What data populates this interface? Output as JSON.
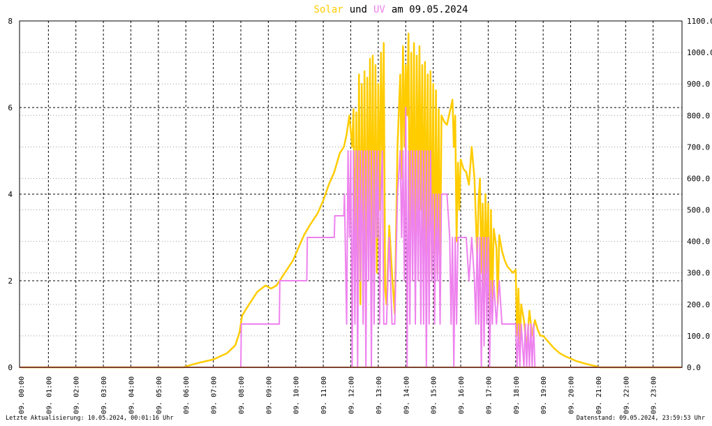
{
  "title": {
    "solar": "Solar",
    "und": "und",
    "uv": "UV",
    "rest": "am 09.05.2024"
  },
  "footer": {
    "left": "Letzte Aktualisierung: 10.05.2024, 00:01:16 Uhr",
    "right": "Datenstand: 09.05.2024, 23:59:53 Uhr"
  },
  "colors": {
    "solar": "#ffcc00",
    "uv": "#ee82ee",
    "baseline": "#ff8060",
    "grid": "#000000"
  },
  "chart_data": {
    "type": "line",
    "x_unit": "hour of day",
    "xlim": [
      -0.05,
      24.05
    ],
    "x_ticks": [
      0,
      1,
      2,
      3,
      4,
      5,
      6,
      7,
      8,
      9,
      10,
      11,
      12,
      13,
      14,
      15,
      16,
      17,
      18,
      19,
      20,
      21,
      22,
      23
    ],
    "x_tick_labels": [
      "09. 00:00",
      "09. 01:00",
      "09. 02:00",
      "09. 03:00",
      "09. 04:00",
      "09. 05:00",
      "09. 06:00",
      "09. 07:00",
      "09. 08:00",
      "09. 09:00",
      "09. 10:00",
      "09. 11:00",
      "09. 12:00",
      "09. 13:00",
      "09. 14:00",
      "09. 15:00",
      "09. 16:00",
      "09. 17:00",
      "09. 18:00",
      "09. 19:00",
      "09. 20:00",
      "09. 21:00",
      "09. 22:00",
      "09. 23:00"
    ],
    "y_left": {
      "range": [
        0,
        8
      ],
      "ticks": [
        0,
        2,
        4,
        6,
        8
      ],
      "tick_labels": [
        "0",
        "2",
        "4",
        "6",
        "8"
      ]
    },
    "y_right": {
      "range": [
        0,
        1100
      ],
      "ticks": [
        0,
        100,
        200,
        300,
        400,
        500,
        600,
        700,
        800,
        900,
        1000,
        1100
      ],
      "tick_labels": [
        "0.0",
        "100.0",
        "200.0",
        "300.0",
        "400.0",
        "500.0",
        "600.0",
        "700.0",
        "800.0",
        "900.0",
        "1000.0",
        "1100.0"
      ]
    },
    "grid": true,
    "series": [
      {
        "name": "Solar",
        "axis": "right",
        "points": [
          [
            0,
            0
          ],
          [
            5.9,
            0
          ],
          [
            6.0,
            3
          ],
          [
            6.2,
            8
          ],
          [
            6.5,
            15
          ],
          [
            7.0,
            25
          ],
          [
            7.5,
            45
          ],
          [
            7.8,
            70
          ],
          [
            7.95,
            110
          ],
          [
            8.05,
            165
          ],
          [
            8.3,
            200
          ],
          [
            8.6,
            240
          ],
          [
            8.9,
            260
          ],
          [
            9.1,
            250
          ],
          [
            9.3,
            260
          ],
          [
            9.6,
            300
          ],
          [
            9.9,
            340
          ],
          [
            10.1,
            380
          ],
          [
            10.3,
            420
          ],
          [
            10.5,
            450
          ],
          [
            10.8,
            490
          ],
          [
            11.0,
            530
          ],
          [
            11.2,
            580
          ],
          [
            11.4,
            620
          ],
          [
            11.5,
            650
          ],
          [
            11.6,
            680
          ],
          [
            11.75,
            700
          ],
          [
            11.85,
            740
          ],
          [
            11.95,
            800
          ],
          [
            12.05,
            700
          ],
          [
            12.1,
            820
          ],
          [
            12.15,
            280
          ],
          [
            12.2,
            810
          ],
          [
            12.25,
            300
          ],
          [
            12.3,
            930
          ],
          [
            12.35,
            200
          ],
          [
            12.4,
            900
          ],
          [
            12.45,
            300
          ],
          [
            12.5,
            940
          ],
          [
            12.55,
            200
          ],
          [
            12.6,
            920
          ],
          [
            12.65,
            350
          ],
          [
            12.7,
            980
          ],
          [
            12.75,
            300
          ],
          [
            12.8,
            990
          ],
          [
            12.85,
            250
          ],
          [
            12.9,
            960
          ],
          [
            12.95,
            300
          ],
          [
            13.0,
            900
          ],
          [
            13.05,
            500
          ],
          [
            13.1,
            1000
          ],
          [
            13.15,
            600
          ],
          [
            13.2,
            1030
          ],
          [
            13.25,
            250
          ],
          [
            13.3,
            200
          ],
          [
            13.4,
            450
          ],
          [
            13.5,
            300
          ],
          [
            13.6,
            170
          ],
          [
            13.7,
            700
          ],
          [
            13.8,
            930
          ],
          [
            13.85,
            600
          ],
          [
            13.9,
            1020
          ],
          [
            13.95,
            700
          ],
          [
            14.0,
            960
          ],
          [
            14.05,
            800
          ],
          [
            14.1,
            1060
          ],
          [
            14.15,
            250
          ],
          [
            14.2,
            1000
          ],
          [
            14.25,
            400
          ],
          [
            14.3,
            1030
          ],
          [
            14.35,
            300
          ],
          [
            14.4,
            990
          ],
          [
            14.45,
            500
          ],
          [
            14.5,
            1020
          ],
          [
            14.55,
            500
          ],
          [
            14.6,
            960
          ],
          [
            14.65,
            400
          ],
          [
            14.7,
            970
          ],
          [
            14.75,
            350
          ],
          [
            14.8,
            930
          ],
          [
            14.85,
            250
          ],
          [
            14.9,
            940
          ],
          [
            14.95,
            300
          ],
          [
            15.0,
            900
          ],
          [
            15.05,
            200
          ],
          [
            15.1,
            880
          ],
          [
            15.15,
            300
          ],
          [
            15.2,
            820
          ],
          [
            15.25,
            250
          ],
          [
            15.3,
            800
          ],
          [
            15.4,
            780
          ],
          [
            15.5,
            770
          ],
          [
            15.6,
            810
          ],
          [
            15.7,
            850
          ],
          [
            15.75,
            700
          ],
          [
            15.8,
            800
          ],
          [
            15.85,
            400
          ],
          [
            15.9,
            650
          ],
          [
            15.95,
            500
          ],
          [
            16.0,
            660
          ],
          [
            16.1,
            630
          ],
          [
            16.2,
            620
          ],
          [
            16.3,
            580
          ],
          [
            16.4,
            700
          ],
          [
            16.5,
            600
          ],
          [
            16.6,
            350
          ],
          [
            16.65,
            530
          ],
          [
            16.7,
            600
          ],
          [
            16.75,
            300
          ],
          [
            16.8,
            520
          ],
          [
            16.85,
            200
          ],
          [
            16.9,
            550
          ],
          [
            16.95,
            300
          ],
          [
            17.0,
            520
          ],
          [
            17.05,
            150
          ],
          [
            17.1,
            500
          ],
          [
            17.15,
            200
          ],
          [
            17.2,
            440
          ],
          [
            17.3,
            380
          ],
          [
            17.35,
            200
          ],
          [
            17.4,
            420
          ],
          [
            17.5,
            370
          ],
          [
            17.6,
            340
          ],
          [
            17.7,
            320
          ],
          [
            17.8,
            310
          ],
          [
            17.9,
            300
          ],
          [
            18.0,
            310
          ],
          [
            18.05,
            100
          ],
          [
            18.1,
            250
          ],
          [
            18.15,
            60
          ],
          [
            18.2,
            200
          ],
          [
            18.3,
            150
          ],
          [
            18.4,
            60
          ],
          [
            18.5,
            180
          ],
          [
            18.6,
            100
          ],
          [
            18.7,
            150
          ],
          [
            18.8,
            120
          ],
          [
            18.9,
            100
          ],
          [
            19.0,
            100
          ],
          [
            19.2,
            80
          ],
          [
            19.4,
            60
          ],
          [
            19.6,
            45
          ],
          [
            19.8,
            35
          ],
          [
            20.0,
            28
          ],
          [
            20.2,
            20
          ],
          [
            20.4,
            15
          ],
          [
            20.6,
            10
          ],
          [
            20.8,
            6
          ],
          [
            20.95,
            3
          ],
          [
            21.05,
            0
          ],
          [
            24.0,
            0
          ]
        ]
      },
      {
        "name": "UV",
        "axis": "left",
        "points": [
          [
            0,
            0
          ],
          [
            8.0,
            0
          ],
          [
            8.02,
            1
          ],
          [
            9.4,
            1
          ],
          [
            9.42,
            2
          ],
          [
            10.4,
            2
          ],
          [
            10.42,
            3
          ],
          [
            11.4,
            3
          ],
          [
            11.42,
            3.5
          ],
          [
            11.75,
            3.5
          ],
          [
            11.77,
            4
          ],
          [
            11.85,
            1
          ],
          [
            11.9,
            5
          ],
          [
            11.95,
            3
          ],
          [
            12.0,
            5
          ],
          [
            12.05,
            0
          ],
          [
            12.1,
            5
          ],
          [
            12.15,
            1
          ],
          [
            12.2,
            5
          ],
          [
            12.25,
            0
          ],
          [
            12.3,
            5
          ],
          [
            12.35,
            2
          ],
          [
            12.4,
            5
          ],
          [
            12.45,
            1
          ],
          [
            12.5,
            5
          ],
          [
            12.55,
            0
          ],
          [
            12.6,
            5
          ],
          [
            12.65,
            2
          ],
          [
            12.7,
            5
          ],
          [
            12.75,
            0
          ],
          [
            12.8,
            5
          ],
          [
            12.85,
            1
          ],
          [
            12.9,
            5
          ],
          [
            12.95,
            3
          ],
          [
            13.0,
            5
          ],
          [
            13.05,
            1
          ],
          [
            13.1,
            4
          ],
          [
            13.15,
            5
          ],
          [
            13.2,
            1
          ],
          [
            13.3,
            1
          ],
          [
            13.4,
            3
          ],
          [
            13.5,
            1
          ],
          [
            13.6,
            1
          ],
          [
            13.7,
            4
          ],
          [
            13.8,
            5
          ],
          [
            13.85,
            3
          ],
          [
            13.9,
            5
          ],
          [
            13.95,
            2
          ],
          [
            14.0,
            6
          ],
          [
            14.05,
            0
          ],
          [
            14.1,
            5
          ],
          [
            14.15,
            1
          ],
          [
            14.2,
            5
          ],
          [
            14.25,
            2
          ],
          [
            14.3,
            5
          ],
          [
            14.35,
            1
          ],
          [
            14.4,
            5
          ],
          [
            14.45,
            2
          ],
          [
            14.5,
            5
          ],
          [
            14.55,
            1
          ],
          [
            14.6,
            5
          ],
          [
            14.65,
            1
          ],
          [
            14.7,
            5
          ],
          [
            14.75,
            0
          ],
          [
            14.8,
            5
          ],
          [
            14.85,
            1
          ],
          [
            14.9,
            5
          ],
          [
            14.95,
            2
          ],
          [
            15.0,
            4
          ],
          [
            15.05,
            1
          ],
          [
            15.1,
            4
          ],
          [
            15.15,
            2
          ],
          [
            15.2,
            4
          ],
          [
            15.25,
            1
          ],
          [
            15.3,
            4
          ],
          [
            15.5,
            4
          ],
          [
            15.6,
            3
          ],
          [
            15.65,
            1
          ],
          [
            15.7,
            3
          ],
          [
            15.75,
            0
          ],
          [
            15.8,
            3
          ],
          [
            15.85,
            1
          ],
          [
            15.9,
            3
          ],
          [
            16.0,
            3
          ],
          [
            16.2,
            3
          ],
          [
            16.3,
            2
          ],
          [
            16.4,
            3
          ],
          [
            16.5,
            2
          ],
          [
            16.55,
            1
          ],
          [
            16.6,
            3
          ],
          [
            16.65,
            1
          ],
          [
            16.7,
            3
          ],
          [
            16.75,
            0
          ],
          [
            16.8,
            3
          ],
          [
            16.85,
            0.5
          ],
          [
            16.9,
            3
          ],
          [
            16.95,
            1
          ],
          [
            17.0,
            3
          ],
          [
            17.05,
            0
          ],
          [
            17.1,
            2
          ],
          [
            17.15,
            1
          ],
          [
            17.2,
            2
          ],
          [
            17.3,
            1
          ],
          [
            17.4,
            2
          ],
          [
            17.5,
            1
          ],
          [
            18.0,
            1
          ],
          [
            18.05,
            0
          ],
          [
            18.1,
            1
          ],
          [
            18.15,
            0
          ],
          [
            18.2,
            1
          ],
          [
            18.3,
            0
          ],
          [
            18.35,
            1
          ],
          [
            18.4,
            0
          ],
          [
            18.45,
            1
          ],
          [
            18.5,
            0
          ],
          [
            18.55,
            1
          ],
          [
            18.6,
            0
          ],
          [
            18.65,
            1
          ],
          [
            18.7,
            0
          ],
          [
            24.0,
            0
          ]
        ]
      }
    ]
  }
}
